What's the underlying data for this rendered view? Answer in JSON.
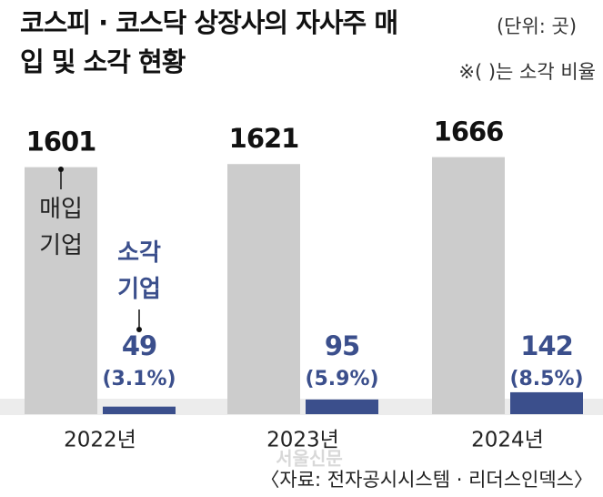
{
  "title": "코스피 · 코스닥 상장사의 자사주 매입 및 소각 현황",
  "unit_note": "(단위: 곳)",
  "ratio_note": "※(  )는 소각 비율",
  "source": "〈자료: 전자공시시스템 · 리더스인덱스〉",
  "watermark": "서울신문",
  "chart_data": {
    "type": "bar",
    "categories": [
      "2022년",
      "2023년",
      "2024년"
    ],
    "series": [
      {
        "name": "매입 기업",
        "color": "#cccccc",
        "values": [
          1601,
          1621,
          1666
        ]
      },
      {
        "name": "소각 기업",
        "color": "#3b4f8c",
        "values": [
          49,
          95,
          142
        ],
        "ratio_labels": [
          "(3.1%)",
          "(5.9%)",
          "(8.5%)"
        ]
      }
    ]
  }
}
